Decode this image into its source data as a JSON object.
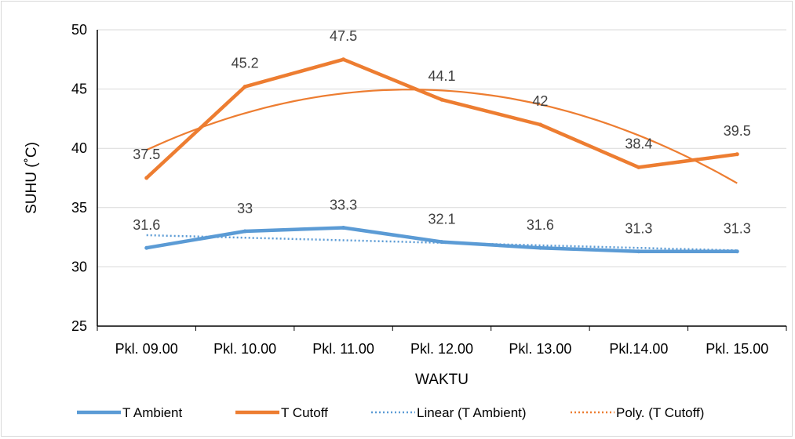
{
  "chart_data": {
    "type": "line",
    "categories": [
      "Pkl. 09.00",
      "Pkl. 10.00",
      "Pkl. 11.00",
      "Pkl. 12.00",
      "Pkl. 13.00",
      "Pkl.14.00",
      "Pkl. 15.00"
    ],
    "series": [
      {
        "name": "T Ambient",
        "values": [
          31.6,
          33,
          33.3,
          32.1,
          31.6,
          31.3,
          31.3
        ],
        "color": "#5b9bd5",
        "labels": [
          "31.6",
          "33",
          "33.3",
          "32.1",
          "31.6",
          "31.3",
          "31.3"
        ]
      },
      {
        "name": "T Cutoff",
        "values": [
          37.5,
          45.2,
          47.5,
          44.1,
          42,
          38.4,
          39.5
        ],
        "color": "#ed7d31",
        "labels": [
          "37.5",
          "45.2",
          "47.5",
          "44.1",
          "42",
          "38.4",
          "39.5"
        ]
      }
    ],
    "trendlines": [
      {
        "name": "Linear (T Ambient)",
        "kind": "linear",
        "of": "T Ambient",
        "color": "#5b9bd5",
        "style": "dotted"
      },
      {
        "name": "Poly. (T Cutoff)",
        "kind": "polynomial",
        "order": 2,
        "of": "T Cutoff",
        "color": "#ed7d31",
        "style": "dotted"
      }
    ],
    "xlabel": "WAKTU",
    "ylabel": "SUHU (˚C)",
    "ylim": [
      25,
      50
    ],
    "yticks": [
      25,
      30,
      35,
      40,
      45,
      50
    ],
    "grid": "horizontal",
    "legend_position": "bottom"
  }
}
